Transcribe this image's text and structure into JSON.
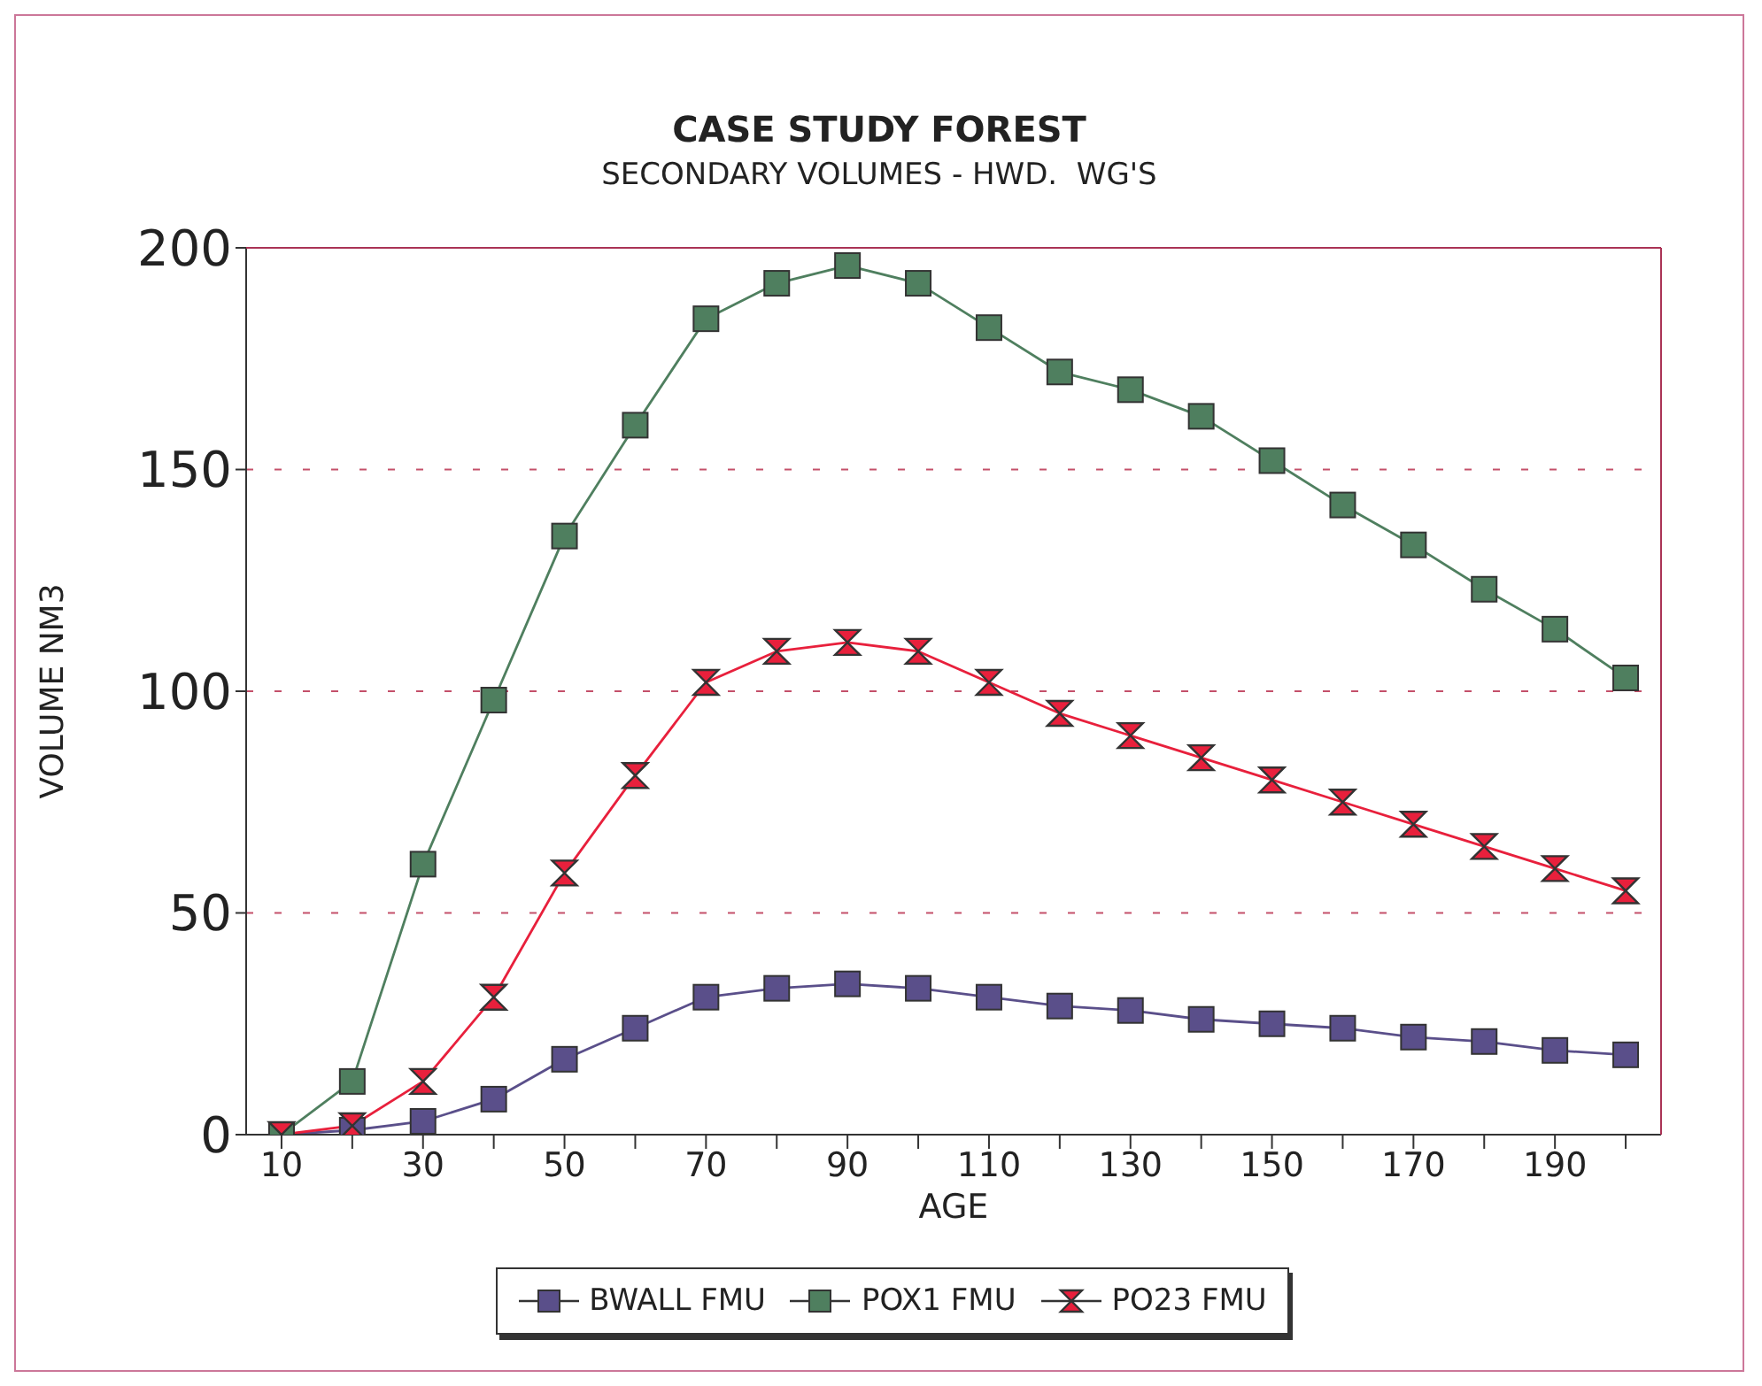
{
  "chart_data": {
    "type": "line",
    "title": "CASE STUDY FOREST",
    "subtitle": "SECONDARY VOLUMES - HWD.  WG'S",
    "xlabel": "AGE",
    "ylabel": "VOLUME NM3",
    "x": [
      10,
      20,
      30,
      40,
      50,
      60,
      70,
      80,
      90,
      100,
      110,
      120,
      130,
      140,
      150,
      160,
      170,
      180,
      190,
      200
    ],
    "series": [
      {
        "name": "BWALL FMU",
        "color": "#5a4f8a",
        "marker": "square",
        "values": [
          0,
          1,
          3,
          8,
          17,
          24,
          31,
          33,
          34,
          33,
          31,
          29,
          28,
          26,
          25,
          24,
          22,
          21,
          19,
          18
        ]
      },
      {
        "name": "POX1 FMU",
        "color": "#4f7f5f",
        "marker": "square",
        "values": [
          0,
          12,
          61,
          98,
          135,
          160,
          184,
          192,
          196,
          192,
          182,
          172,
          168,
          162,
          152,
          142,
          133,
          123,
          114,
          103
        ]
      },
      {
        "name": "PO23 FMU",
        "color": "#e8203c",
        "marker": "triangle",
        "values": [
          0,
          2,
          12,
          31,
          59,
          81,
          102,
          109,
          111,
          109,
          102,
          95,
          90,
          85,
          80,
          75,
          70,
          65,
          60,
          55
        ]
      }
    ],
    "xlim": [
      5,
      205
    ],
    "xticks": [
      10,
      {
        "value": 20,
        "label": null
      },
      30,
      {
        "value": 40,
        "label": null
      },
      50,
      {
        "value": 60,
        "label": null
      },
      70,
      {
        "value": 80,
        "label": null
      },
      90,
      {
        "value": 100,
        "label": null
      },
      110,
      {
        "value": 120,
        "label": null
      },
      130,
      {
        "value": 140,
        "label": null
      },
      150,
      {
        "value": 160,
        "label": null
      },
      170,
      {
        "value": 180,
        "label": null
      },
      190,
      {
        "value": 200,
        "label": null
      }
    ],
    "ylim": [
      0,
      200
    ],
    "yticks": [
      0,
      50,
      100,
      150,
      200
    ],
    "grid": "y",
    "legend": "bottom",
    "line_style": "solid"
  }
}
